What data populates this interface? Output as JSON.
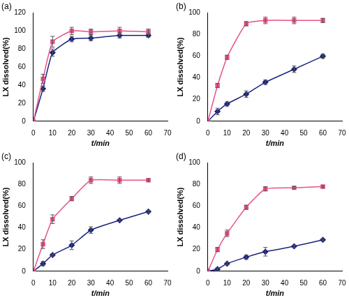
{
  "chart_data": [
    {
      "type": "line",
      "title": "(a)",
      "xlabel": "t/min",
      "ylabel": "LX dissolved(%)",
      "x": [
        0,
        5,
        10,
        20,
        30,
        45,
        60
      ],
      "xlim": [
        0,
        70
      ],
      "xticks": [
        0,
        10,
        20,
        30,
        40,
        50,
        60,
        70
      ],
      "ylim": [
        0,
        120
      ],
      "yticks": [
        0,
        20,
        40,
        60,
        80,
        100,
        120
      ],
      "grid": false,
      "series": [
        {
          "color": "#e8508a",
          "marker": "square",
          "values": [
            0,
            47,
            88,
            100,
            99,
            100,
            99
          ],
          "errors": [
            0,
            5,
            6,
            4,
            3,
            4,
            3
          ]
        },
        {
          "color": "#1a237e",
          "marker": "diamond",
          "values": [
            0,
            36,
            76,
            91,
            92,
            95,
            95
          ],
          "errors": [
            0,
            3,
            4,
            3,
            3,
            3,
            2
          ]
        }
      ]
    },
    {
      "type": "line",
      "title": "(b)",
      "xlabel": "t/min",
      "ylabel": "LX dissolved(%)",
      "x": [
        0,
        5,
        10,
        20,
        30,
        45,
        60
      ],
      "xlim": [
        0,
        70
      ],
      "xticks": [
        0,
        10,
        20,
        30,
        40,
        50,
        60,
        70
      ],
      "ylim": [
        0,
        100
      ],
      "yticks": [
        0,
        20,
        40,
        60,
        80,
        100
      ],
      "grid": false,
      "series": [
        {
          "color": "#e8508a",
          "marker": "square",
          "values": [
            0,
            33,
            59,
            90,
            93,
            93,
            93
          ],
          "errors": [
            0,
            2,
            2,
            2,
            3,
            3,
            2
          ]
        },
        {
          "color": "#1a237e",
          "marker": "diamond",
          "values": [
            0,
            9,
            16,
            25,
            36,
            48,
            60
          ],
          "errors": [
            0,
            3,
            2,
            3,
            2,
            3,
            2
          ]
        }
      ]
    },
    {
      "type": "line",
      "title": "(c)",
      "xlabel": "t/min",
      "ylabel": "LX dissolved(%)",
      "x": [
        0,
        5,
        10,
        20,
        30,
        45,
        60
      ],
      "xlim": [
        0,
        70
      ],
      "xticks": [
        0,
        10,
        20,
        30,
        40,
        50,
        60,
        70
      ],
      "ylim": [
        0,
        100
      ],
      "yticks": [
        0,
        20,
        40,
        60,
        80,
        100
      ],
      "grid": false,
      "series": [
        {
          "color": "#e8508a",
          "marker": "square",
          "values": [
            0,
            25,
            48,
            67,
            84,
            84,
            84
          ],
          "errors": [
            0,
            4,
            4,
            2,
            3,
            3,
            1
          ]
        },
        {
          "color": "#1a237e",
          "marker": "diamond",
          "values": [
            0,
            7,
            15,
            24,
            38,
            47,
            55
          ],
          "errors": [
            0,
            2,
            1,
            4,
            3,
            1,
            1
          ]
        }
      ]
    },
    {
      "type": "line",
      "title": "(d)",
      "xlabel": "t/min",
      "ylabel": "LX dissolved(%)",
      "x": [
        0,
        5,
        10,
        20,
        30,
        45,
        60
      ],
      "xlim": [
        0,
        70
      ],
      "xticks": [
        0,
        10,
        20,
        30,
        40,
        50,
        60,
        70
      ],
      "ylim": [
        0,
        100
      ],
      "yticks": [
        0,
        20,
        40,
        60,
        80,
        100
      ],
      "grid": false,
      "series": [
        {
          "color": "#e8508a",
          "marker": "square",
          "values": [
            0,
            20,
            35,
            59,
            76,
            77,
            78
          ],
          "errors": [
            0,
            2,
            3,
            2,
            2,
            1,
            1
          ]
        },
        {
          "color": "#1a237e",
          "marker": "diamond",
          "values": [
            0,
            2,
            7,
            13,
            18,
            23,
            29
          ],
          "errors": [
            0,
            1,
            1,
            2,
            4,
            1,
            1
          ]
        }
      ]
    }
  ]
}
